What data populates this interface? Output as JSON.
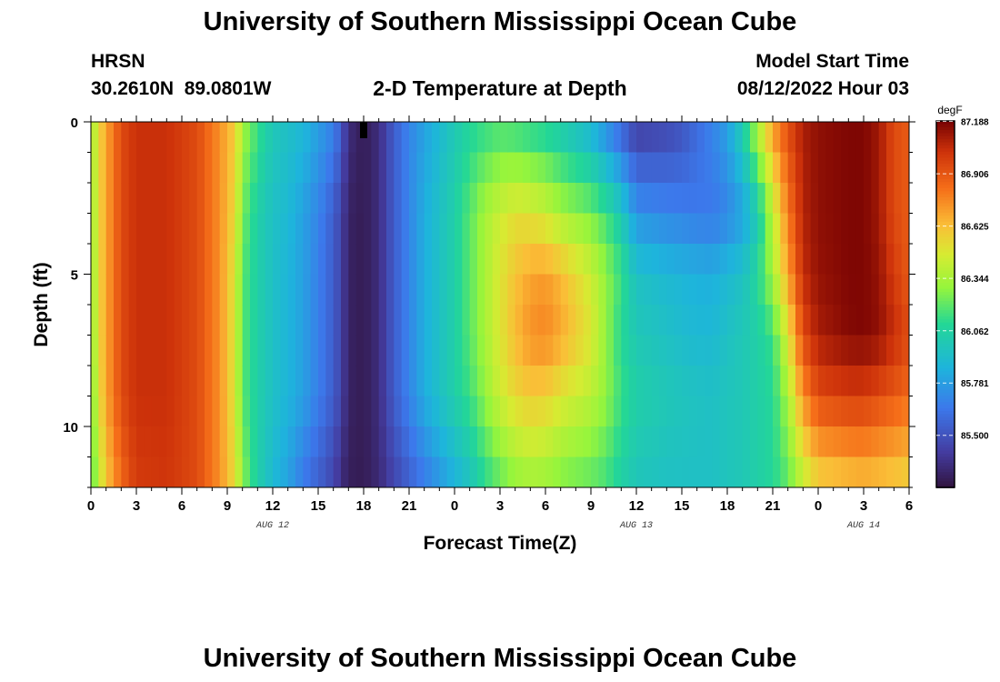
{
  "page": {
    "title": "University of Southern Mississippi Ocean Cube",
    "bottom_title": "University of Southern Mississippi Ocean Cube"
  },
  "header": {
    "station": "HRSN",
    "coords": "30.2610N  89.0801W",
    "plot_title": "2-D Temperature at Depth",
    "model_label": "Model Start Time",
    "model_time": "08/12/2022 Hour 03"
  },
  "chart_data": {
    "type": "heatmap",
    "title": "2-D Temperature at Depth",
    "xlabel": "Forecast Time(Z)",
    "ylabel": "Depth (ft)",
    "x_tick_labels": [
      "0",
      "3",
      "6",
      "9",
      "12",
      "15",
      "18",
      "21",
      "0",
      "3",
      "6",
      "9",
      "12",
      "15",
      "18",
      "21",
      "0",
      "3",
      "6"
    ],
    "x_hours": [
      0,
      3,
      6,
      9,
      12,
      15,
      18,
      21,
      24,
      27,
      30,
      33,
      36,
      39,
      42,
      45,
      48,
      51,
      54
    ],
    "xlim": [
      0,
      54
    ],
    "date_labels": [
      {
        "text": "AUG 12",
        "hour": 12
      },
      {
        "text": "AUG 13",
        "hour": 36
      },
      {
        "text": "AUG 14",
        "hour": 51
      }
    ],
    "y_ticks": [
      0,
      5,
      10
    ],
    "ylim": [
      0,
      12
    ],
    "marker_hour": 18,
    "colorbar": {
      "unit": "degF",
      "ticks": [
        87.188,
        86.906,
        86.625,
        86.344,
        86.062,
        85.781,
        85.5
      ],
      "tick_labels": [
        "87.188",
        "86.906",
        "86.625",
        "86.344",
        "86.062",
        "85.781",
        "85.500"
      ],
      "vmin": 85.22,
      "vmax": 87.19
    },
    "depths": [
      0,
      1,
      2,
      3,
      4,
      5,
      6,
      7,
      8,
      9,
      10,
      11,
      12
    ],
    "profile_hours": [
      0,
      0.5,
      1,
      2,
      3,
      5,
      7,
      8.5,
      9.5,
      10,
      11,
      12,
      13,
      14,
      15,
      16,
      16.5,
      17,
      18,
      19,
      20,
      21,
      22,
      23,
      24,
      25,
      26,
      27,
      28,
      29,
      30,
      31,
      33,
      34,
      35,
      36,
      38,
      39,
      40,
      41,
      42,
      43,
      44,
      45,
      46,
      47,
      48,
      50,
      51,
      52,
      53,
      54
    ],
    "profiles": {
      "0": [
        86.3,
        86.55,
        86.7,
        86.95,
        87.04,
        87.04,
        86.95,
        86.75,
        86.6,
        86.35,
        86.15,
        86.0,
        85.95,
        85.9,
        85.8,
        85.7,
        85.55,
        85.35,
        85.27,
        85.35,
        85.55,
        85.7,
        85.8,
        85.9,
        86.0,
        86.08,
        86.12,
        86.15,
        86.12,
        86.08,
        86.05,
        86.0,
        85.85,
        85.7,
        85.55,
        85.4,
        85.45,
        85.5,
        85.6,
        85.7,
        85.8,
        86.05,
        86.4,
        86.75,
        86.95,
        87.1,
        87.15,
        87.18,
        87.18,
        87.12,
        86.95,
        86.9
      ],
      "3": [
        86.28,
        86.55,
        86.7,
        86.95,
        87.04,
        87.04,
        86.95,
        86.75,
        86.55,
        86.25,
        86.05,
        85.95,
        85.9,
        85.8,
        85.7,
        85.55,
        85.45,
        85.3,
        85.27,
        85.35,
        85.55,
        85.7,
        85.85,
        85.95,
        86.05,
        86.2,
        86.35,
        86.45,
        86.52,
        86.5,
        86.45,
        86.35,
        86.25,
        86.15,
        86.0,
        85.75,
        85.7,
        85.68,
        85.66,
        85.65,
        85.7,
        85.8,
        86.0,
        86.4,
        86.8,
        87.08,
        87.15,
        87.18,
        87.18,
        87.12,
        86.95,
        86.9
      ],
      "5": [
        86.26,
        86.55,
        86.7,
        86.95,
        87.04,
        87.04,
        86.95,
        86.75,
        86.5,
        86.2,
        86.05,
        85.95,
        85.88,
        85.8,
        85.68,
        85.55,
        85.45,
        85.3,
        85.27,
        85.35,
        85.55,
        85.7,
        85.85,
        85.95,
        86.05,
        86.2,
        86.35,
        86.5,
        86.62,
        86.7,
        86.72,
        86.65,
        86.45,
        86.3,
        86.15,
        85.95,
        85.9,
        85.88,
        85.86,
        85.85,
        85.9,
        85.95,
        86.1,
        86.35,
        86.7,
        87.05,
        87.14,
        87.18,
        87.18,
        87.14,
        87.0,
        86.9
      ],
      "7": [
        86.25,
        86.55,
        86.7,
        86.95,
        87.04,
        87.04,
        86.95,
        86.75,
        86.5,
        86.2,
        86.05,
        85.95,
        85.88,
        85.8,
        85.68,
        85.55,
        85.45,
        85.3,
        85.27,
        85.35,
        85.55,
        85.7,
        85.85,
        85.95,
        86.05,
        86.2,
        86.35,
        86.5,
        86.65,
        86.75,
        86.78,
        86.7,
        86.5,
        86.3,
        86.1,
        86.0,
        85.95,
        85.92,
        85.9,
        85.9,
        85.95,
        86.0,
        86.05,
        86.15,
        86.5,
        86.95,
        87.1,
        87.17,
        87.18,
        87.15,
        87.05,
        86.95
      ],
      "9": [
        86.22,
        86.52,
        86.7,
        86.95,
        87.04,
        87.04,
        86.95,
        86.75,
        86.5,
        86.2,
        86.05,
        85.95,
        85.88,
        85.8,
        85.68,
        85.55,
        85.45,
        85.3,
        85.27,
        85.35,
        85.55,
        85.7,
        85.85,
        85.95,
        86.05,
        86.15,
        86.3,
        86.45,
        86.55,
        86.6,
        86.58,
        86.5,
        86.4,
        86.3,
        86.15,
        86.05,
        86.0,
        85.98,
        85.96,
        85.95,
        85.98,
        86.0,
        86.05,
        86.1,
        86.35,
        86.75,
        86.95,
        87.0,
        87.0,
        86.95,
        86.9,
        86.85
      ],
      "12": [
        86.15,
        86.4,
        86.6,
        86.85,
        87.0,
        87.02,
        86.95,
        86.75,
        86.55,
        86.3,
        86.05,
        85.9,
        85.8,
        85.65,
        85.55,
        85.45,
        85.35,
        85.28,
        85.27,
        85.33,
        85.45,
        85.55,
        85.65,
        85.75,
        85.85,
        85.95,
        86.1,
        86.2,
        86.28,
        86.32,
        86.3,
        86.25,
        86.2,
        86.15,
        86.05,
        85.98,
        85.95,
        85.95,
        85.95,
        85.95,
        85.98,
        86.0,
        86.05,
        86.1,
        86.2,
        86.4,
        86.55,
        86.6,
        86.62,
        86.6,
        86.58,
        86.55
      ]
    }
  }
}
